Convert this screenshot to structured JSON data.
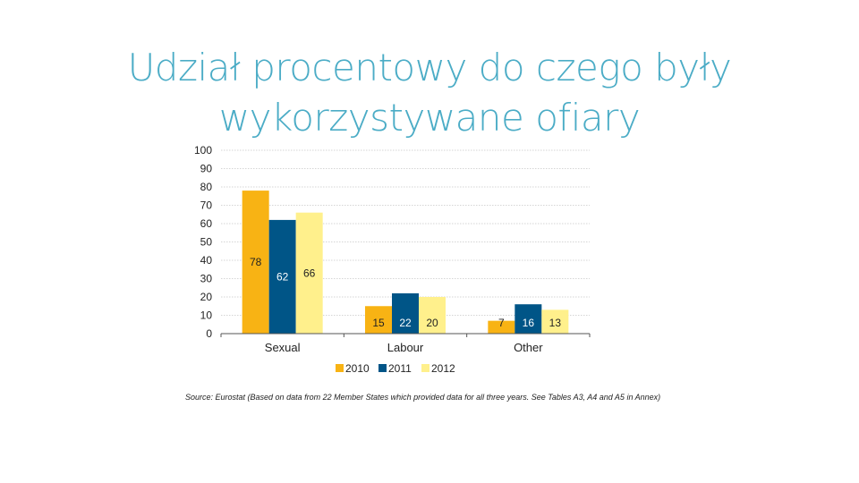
{
  "slide": {
    "title_line1": "Udział procentowy do czego były",
    "title_line2": "wykorzystywane ofiary"
  },
  "chart_data": {
    "type": "bar",
    "categories": [
      "Sexual",
      "Labour",
      "Other"
    ],
    "series": [
      {
        "name": "2010",
        "values": [
          78,
          15,
          7
        ],
        "color": "#f8b314"
      },
      {
        "name": "2011",
        "values": [
          62,
          22,
          16
        ],
        "color": "#005587"
      },
      {
        "name": "2012",
        "values": [
          66,
          20,
          13
        ],
        "color": "#fff08c"
      }
    ],
    "data_label_colors": [
      "#222222",
      "#ffffff",
      "#222222"
    ],
    "ylim": [
      0,
      100
    ],
    "yticks": [
      0,
      10,
      20,
      30,
      40,
      50,
      60,
      70,
      80,
      90,
      100
    ],
    "grid": true,
    "legend_position": "bottom-center",
    "title": "",
    "xlabel": "",
    "ylabel": ""
  },
  "source_note": "Source: Eurostat (Based on data from 22 Member States which provided data for all three years. See Tables A3, A4 and A5 in Annex)"
}
